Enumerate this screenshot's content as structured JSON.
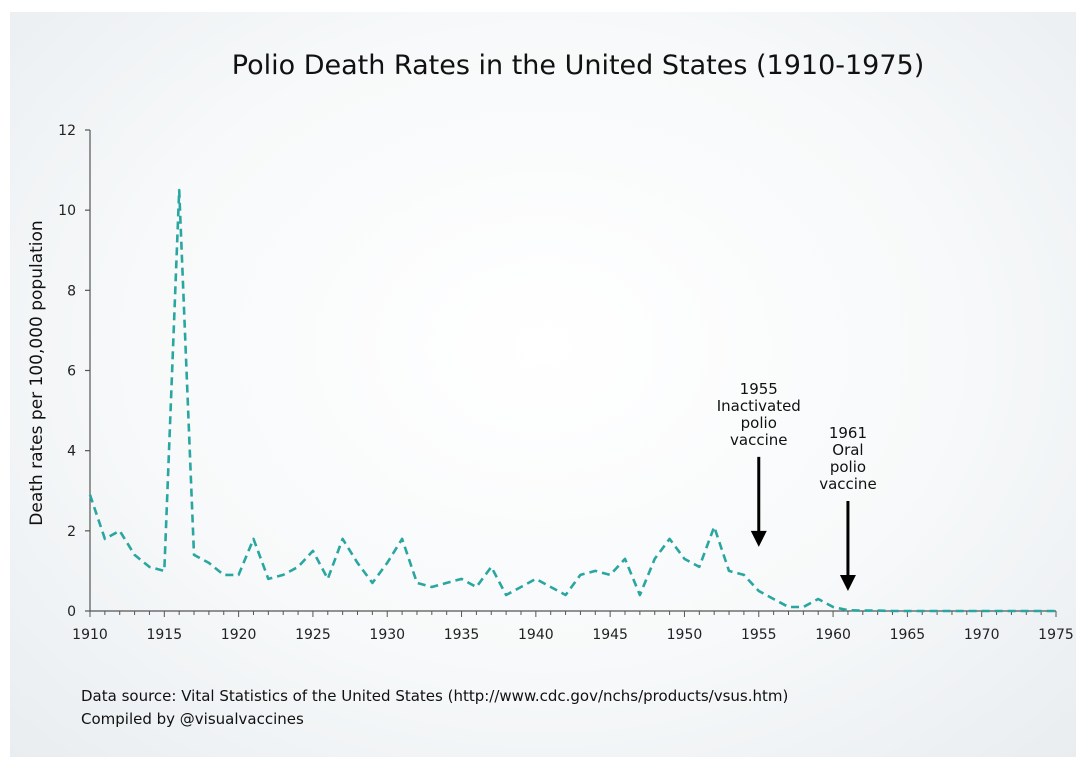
{
  "chart_data": {
    "type": "line",
    "title": "Polio Death Rates in the United States (1910-1975)",
    "xlabel": "",
    "ylabel": "Death rates per 100,000 population",
    "xlim": [
      1910,
      1975
    ],
    "ylim": [
      0,
      12
    ],
    "x_ticks": [
      1910,
      1915,
      1920,
      1925,
      1930,
      1935,
      1940,
      1945,
      1950,
      1955,
      1960,
      1965,
      1970,
      1975
    ],
    "y_ticks": [
      0,
      2,
      4,
      6,
      8,
      10,
      12
    ],
    "grid": false,
    "line_color": "#2aa6a1",
    "line_style": "dashed",
    "series": [
      {
        "x": [
          1910,
          1911,
          1912,
          1913,
          1914,
          1915,
          1916,
          1917,
          1918,
          1919,
          1920,
          1921,
          1922,
          1923,
          1924,
          1925,
          1926,
          1927,
          1928,
          1929,
          1930,
          1931,
          1932,
          1933,
          1934,
          1935,
          1936,
          1937,
          1938,
          1939,
          1940,
          1941,
          1942,
          1943,
          1944,
          1945,
          1946,
          1947,
          1948,
          1949,
          1950,
          1951,
          1952,
          1953,
          1954,
          1955,
          1956,
          1957,
          1958,
          1959,
          1960,
          1961,
          1962,
          1963,
          1964,
          1965,
          1966,
          1967,
          1968,
          1969,
          1970,
          1971,
          1972,
          1973,
          1974,
          1975
        ],
        "y": [
          2.9,
          1.8,
          2.0,
          1.4,
          1.1,
          1.0,
          10.5,
          1.4,
          1.2,
          0.9,
          0.9,
          1.8,
          0.8,
          0.9,
          1.1,
          1.5,
          0.8,
          1.8,
          1.2,
          0.7,
          1.2,
          1.8,
          0.7,
          0.6,
          0.7,
          0.8,
          0.6,
          1.1,
          0.4,
          0.6,
          0.8,
          0.6,
          0.4,
          0.9,
          1.0,
          0.9,
          1.3,
          0.4,
          1.3,
          1.8,
          1.3,
          1.1,
          2.1,
          1.0,
          0.9,
          0.5,
          0.3,
          0.1,
          0.1,
          0.3,
          0.1,
          0.02,
          0.01,
          0.01,
          0.0,
          0.0,
          0.0,
          0.0,
          0.0,
          0.0,
          0.0,
          0.0,
          0.0,
          0.0,
          0.0,
          0.0
        ]
      }
    ],
    "annotations": [
      {
        "lines": [
          "1955",
          "Inactivated",
          "polio",
          "vaccine"
        ],
        "arrow_x": 1955,
        "arrow_y": 1.6
      },
      {
        "lines": [
          "1961",
          "Oral",
          "polio",
          "vaccine"
        ],
        "arrow_x": 1961,
        "arrow_y": 0.5
      }
    ]
  },
  "footer": {
    "source": "Data source: Vital Statistics of the United States (http://www.cdc.gov/nchs/products/vsus.htm)",
    "compiled": "Compiled by @visualvaccines"
  }
}
